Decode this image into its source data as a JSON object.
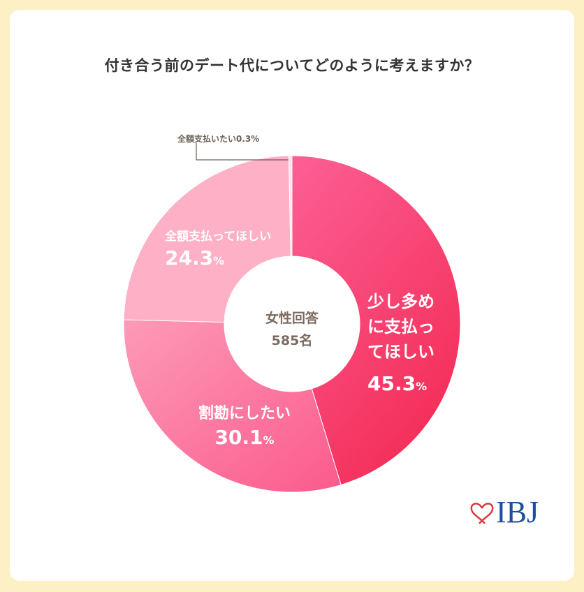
{
  "title": "付き合う前のデート代についてどのように考えますか？",
  "center": {
    "line1": "女性回答",
    "line2": "585名"
  },
  "logo": "IBJ",
  "chart_data": {
    "type": "pie",
    "donut": true,
    "title": "付き合う前のデート代についてどのように考えますか？",
    "slices": [
      {
        "label": "少し多めに支払ってほしい",
        "value": 45.3,
        "pct_text": "45.3",
        "color": "#f53d6b"
      },
      {
        "label": "割勘にしたい",
        "value": 30.1,
        "pct_text": "30.1",
        "color": "#fb6796"
      },
      {
        "label": "全額支払ってほしい",
        "value": 24.3,
        "pct_text": "24.3",
        "color": "#fdb0c6"
      },
      {
        "label": "全額支払いたい",
        "value": 0.3,
        "pct_text": "0.3%",
        "color": "#fde3ea"
      }
    ],
    "percent_sign": "%"
  }
}
